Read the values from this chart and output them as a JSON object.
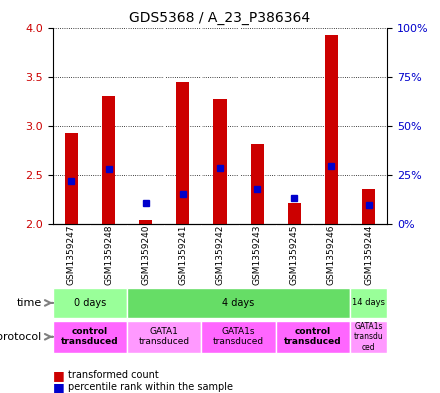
{
  "title": "GDS5368 / A_23_P386364",
  "samples": [
    "GSM1359247",
    "GSM1359248",
    "GSM1359240",
    "GSM1359241",
    "GSM1359242",
    "GSM1359243",
    "GSM1359245",
    "GSM1359246",
    "GSM1359244"
  ],
  "bar_bottoms": [
    2.0,
    2.0,
    2.0,
    2.0,
    2.0,
    2.0,
    2.0,
    2.0,
    2.0
  ],
  "bar_tops": [
    2.93,
    3.3,
    2.05,
    3.45,
    3.27,
    2.82,
    2.22,
    3.92,
    2.36
  ],
  "blue_vals": [
    2.44,
    2.56,
    2.22,
    2.31,
    2.57,
    2.36,
    2.27,
    2.59,
    2.2
  ],
  "ylim": [
    2.0,
    4.0
  ],
  "yticks_left": [
    2.0,
    2.5,
    3.0,
    3.5,
    4.0
  ],
  "yticks_right": [
    0,
    25,
    50,
    75,
    100
  ],
  "bar_color": "#cc0000",
  "blue_color": "#0000cc",
  "bg_color": "#f0f0f0",
  "time_groups": [
    {
      "label": "0 days",
      "start": 0,
      "end": 2,
      "color": "#99ff99"
    },
    {
      "label": "4 days",
      "start": 2,
      "end": 8,
      "color": "#66dd66"
    },
    {
      "label": "14 days",
      "start": 8,
      "end": 9,
      "color": "#99ff99"
    }
  ],
  "protocol_groups": [
    {
      "label": "control\ntransduced",
      "start": 0,
      "end": 2,
      "color": "#ff66ff",
      "bold": true
    },
    {
      "label": "GATA1\ntransduced",
      "start": 2,
      "end": 4,
      "color": "#ff99ff",
      "bold": false
    },
    {
      "label": "GATA1s\ntransduced",
      "start": 4,
      "end": 6,
      "color": "#ff66ff",
      "bold": false
    },
    {
      "label": "control\ntransduced",
      "start": 6,
      "end": 8,
      "color": "#ff66ff",
      "bold": true
    },
    {
      "label": "GATA1s\ntransdu\nced",
      "start": 8,
      "end": 9,
      "color": "#ff99ff",
      "bold": false
    }
  ],
  "left_ylabel_color": "#cc0000",
  "right_ylabel_color": "#0000cc"
}
